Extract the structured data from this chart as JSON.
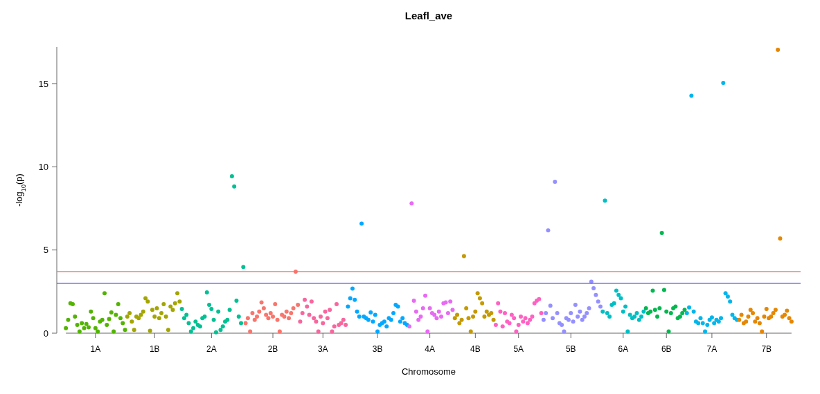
{
  "chart_data": {
    "type": "scatter",
    "title": "Leafl_ave",
    "xlabel": "Chromosome",
    "ylabel": "-log$_{10}$(p)",
    "marker": "circle",
    "ylim": [
      0,
      17.2
    ],
    "yticks": [
      0,
      5,
      10,
      15
    ],
    "ref_lines": [
      {
        "axis": "y",
        "value": 3.7,
        "color": "#f87070"
      },
      {
        "axis": "y",
        "value": 3.0,
        "color": "#5050f0"
      }
    ],
    "categories": [
      null,
      null,
      null,
      null,
      null,
      null,
      null,
      null,
      null,
      null,
      null,
      null,
      null,
      "1A",
      null,
      null,
      null,
      null,
      null,
      null,
      null,
      null,
      null,
      null,
      null,
      null,
      null,
      null,
      null,
      null,
      null,
      null,
      null,
      null,
      null,
      null,
      null,
      null,
      null,
      "1B",
      null,
      null,
      null,
      null,
      null,
      null,
      null,
      null,
      null,
      null,
      null,
      null,
      null,
      null,
      null,
      null,
      null,
      null,
      null,
      null,
      null,
      null,
      null,
      null,
      "2A",
      null,
      null,
      null,
      null,
      null,
      null,
      null,
      null,
      null,
      null,
      null,
      null,
      null,
      null,
      null,
      null,
      null,
      null,
      null,
      null,
      null,
      null,
      null,
      null,
      null,
      null,
      "2B",
      null,
      null,
      null,
      null,
      null,
      null,
      null,
      null,
      null,
      null,
      null,
      null,
      null,
      null,
      null,
      null,
      null,
      null,
      null,
      null,
      null,
      "3A",
      null,
      null,
      null,
      null,
      null,
      null,
      null,
      null,
      null,
      null,
      null,
      null,
      null,
      null,
      null,
      null,
      null,
      null,
      null,
      null,
      null,
      null,
      null,
      "3B",
      null,
      null,
      null,
      null,
      null,
      null,
      null,
      null,
      null,
      null,
      null,
      null,
      null,
      null,
      null,
      null,
      null,
      null,
      null,
      null,
      null,
      null,
      "4A",
      null,
      null,
      null,
      null,
      null,
      null,
      null,
      null,
      null,
      null,
      null,
      null,
      null,
      null,
      null,
      null,
      null,
      null,
      null,
      "4B",
      null,
      null,
      null,
      null,
      null,
      null,
      null,
      null,
      null,
      null,
      null,
      null,
      null,
      null,
      null,
      null,
      null,
      null,
      "5A",
      null,
      null,
      null,
      null,
      null,
      null,
      null,
      null,
      null,
      null,
      null,
      null,
      null,
      null,
      null,
      null,
      null,
      null,
      null,
      null,
      null,
      null,
      "5B",
      null,
      null,
      null,
      null,
      null,
      null,
      null,
      null,
      null,
      null,
      null,
      null,
      null,
      null,
      null,
      null,
      null,
      null,
      null,
      null,
      null,
      null,
      "6A",
      null,
      null,
      null,
      null,
      null,
      null,
      null,
      null,
      null,
      null,
      null,
      null,
      null,
      null,
      null,
      null,
      null,
      null,
      "6B",
      null,
      null,
      null,
      null,
      null,
      null,
      null,
      null,
      null,
      null,
      null,
      null,
      null,
      null,
      null,
      null,
      null,
      null,
      null,
      "7A",
      null,
      null,
      null,
      null,
      null,
      null,
      null,
      null,
      null,
      null,
      null,
      null,
      null,
      null,
      null,
      null,
      null,
      null,
      null,
      null,
      null,
      null,
      null,
      "7B",
      null,
      null,
      null,
      null,
      null,
      null,
      null,
      null,
      null,
      null,
      null
    ],
    "values": [
      0.3,
      0.8,
      1.8,
      1.75,
      1.0,
      0.5,
      0.1,
      0.6,
      0.3,
      0.55,
      0.35,
      1.3,
      0.9,
      0.3,
      0.1,
      0.7,
      0.8,
      2.4,
      0.5,
      0.85,
      1.25,
      0.1,
      1.1,
      1.75,
      0.9,
      0.6,
      0.2,
      1.0,
      1.2,
      0.7,
      0.2,
      1.0,
      0.9,
      1.1,
      1.3,
      2.1,
      1.9,
      0.15,
      1.4,
      1.0,
      1.5,
      0.9,
      1.2,
      1.75,
      1.0,
      0.2,
      1.6,
      1.4,
      1.8,
      2.4,
      1.9,
      1.45,
      0.9,
      1.1,
      0.6,
      0.1,
      0.3,
      0.7,
      0.5,
      0.4,
      0.9,
      1.0,
      2.45,
      1.7,
      1.45,
      0.8,
      0.05,
      1.3,
      0.2,
      0.4,
      0.7,
      0.8,
      1.4,
      9.43,
      8.82,
      1.95,
      1.0,
      0.6,
      3.98,
      0.6,
      0.9,
      0.1,
      1.2,
      0.8,
      1.0,
      1.3,
      1.85,
      1.5,
      1.1,
      0.9,
      1.2,
      1.0,
      1.75,
      0.8,
      0.1,
      1.1,
      1.0,
      1.3,
      0.9,
      1.2,
      1.5,
      3.7,
      1.7,
      0.7,
      1.2,
      2.0,
      1.6,
      1.1,
      1.9,
      0.9,
      0.7,
      0.1,
      1.0,
      0.6,
      1.3,
      0.9,
      1.4,
      0.1,
      0.4,
      1.75,
      0.5,
      0.6,
      0.8,
      0.5,
      1.6,
      2.1,
      2.68,
      2.0,
      1.3,
      1.0,
      6.59,
      1.0,
      0.9,
      0.8,
      1.25,
      0.7,
      1.1,
      0.1,
      0.5,
      0.6,
      0.7,
      0.4,
      0.9,
      0.8,
      1.2,
      1.7,
      1.6,
      0.7,
      0.9,
      0.6,
      0.5,
      0.4,
      7.8,
      1.95,
      1.3,
      0.8,
      1.0,
      1.5,
      2.25,
      0.1,
      1.5,
      1.2,
      1.1,
      0.9,
      1.3,
      1.0,
      1.8,
      1.85,
      1.2,
      1.9,
      1.4,
      0.9,
      1.1,
      0.6,
      0.8,
      4.63,
      1.5,
      0.9,
      0.1,
      1.0,
      1.3,
      2.4,
      2.1,
      1.8,
      1.0,
      1.3,
      1.1,
      1.2,
      0.8,
      0.5,
      1.8,
      1.3,
      0.4,
      1.2,
      0.7,
      0.6,
      1.1,
      0.9,
      0.1,
      0.5,
      1.0,
      0.7,
      0.9,
      0.6,
      0.8,
      1.0,
      1.8,
      1.95,
      2.05,
      1.2,
      0.8,
      1.2,
      6.18,
      1.65,
      0.9,
      9.1,
      1.2,
      0.6,
      0.5,
      0.1,
      0.9,
      0.8,
      1.2,
      0.7,
      1.7,
      1.0,
      1.3,
      0.8,
      1.0,
      1.2,
      1.5,
      3.1,
      2.7,
      2.3,
      1.9,
      1.6,
      1.3,
      7.97,
      1.2,
      1.0,
      1.7,
      1.8,
      2.55,
      2.3,
      2.1,
      1.3,
      1.6,
      0.1,
      1.1,
      0.9,
      1.0,
      1.2,
      0.8,
      1.0,
      1.3,
      1.5,
      1.2,
      1.3,
      2.55,
      1.4,
      1.0,
      1.5,
      6.02,
      2.6,
      1.3,
      0.1,
      1.2,
      1.5,
      1.6,
      0.9,
      1.0,
      1.2,
      1.4,
      1.2,
      1.55,
      14.27,
      1.3,
      0.7,
      0.6,
      0.9,
      0.6,
      0.1,
      0.5,
      0.8,
      0.95,
      0.6,
      0.8,
      0.7,
      0.9,
      15.04,
      2.4,
      2.2,
      1.9,
      1.1,
      0.9,
      0.8,
      0.8,
      1.1,
      0.6,
      0.7,
      1.0,
      1.4,
      1.2,
      0.7,
      0.9,
      0.6,
      0.1,
      1.0,
      1.45,
      0.9,
      1.0,
      1.2,
      1.4,
      17.03,
      5.69,
      1.0,
      1.1,
      1.35,
      0.9,
      0.7
    ],
    "colors": [
      "#53b400",
      "#53b400",
      "#53b400",
      "#53b400",
      "#53b400",
      "#53b400",
      "#53b400",
      "#53b400",
      "#53b400",
      "#53b400",
      "#53b400",
      "#53b400",
      "#53b400",
      "#53b400",
      "#53b400",
      "#53b400",
      "#53b400",
      "#53b400",
      "#53b400",
      "#53b400",
      "#53b400",
      "#53b400",
      "#53b400",
      "#53b400",
      "#53b400",
      "#53b400",
      "#53b400",
      "#a3a500",
      "#a3a500",
      "#a3a500",
      "#a3a500",
      "#a3a500",
      "#a3a500",
      "#a3a500",
      "#a3a500",
      "#a3a500",
      "#a3a500",
      "#a3a500",
      "#a3a500",
      "#a3a500",
      "#a3a500",
      "#a3a500",
      "#a3a500",
      "#a3a500",
      "#a3a500",
      "#a3a500",
      "#a3a500",
      "#a3a500",
      "#a3a500",
      "#a3a500",
      "#a3a500",
      "#00c094",
      "#00c094",
      "#00c094",
      "#00c094",
      "#00c094",
      "#00c094",
      "#00c094",
      "#00c094",
      "#00c094",
      "#00c094",
      "#00c094",
      "#00c094",
      "#00c094",
      "#00c094",
      "#00c094",
      "#00c094",
      "#00c094",
      "#00c094",
      "#00c094",
      "#00c094",
      "#00c094",
      "#00c094",
      "#00c094",
      "#00c094",
      "#00c094",
      "#00c094",
      "#00c094",
      "#00c094",
      "#f8766d",
      "#f8766d",
      "#f8766d",
      "#f8766d",
      "#f8766d",
      "#f8766d",
      "#f8766d",
      "#f8766d",
      "#f8766d",
      "#f8766d",
      "#f8766d",
      "#f8766d",
      "#f8766d",
      "#f8766d",
      "#f8766d",
      "#f8766d",
      "#f8766d",
      "#f8766d",
      "#f8766d",
      "#f8766d",
      "#f8766d",
      "#f8766d",
      "#f8766d",
      "#f8766d",
      "#f8669e",
      "#f8669e",
      "#f8669e",
      "#f8669e",
      "#f8669e",
      "#f8669e",
      "#f8669e",
      "#f8669e",
      "#f8669e",
      "#f8669e",
      "#f8669e",
      "#f8669e",
      "#f8669e",
      "#f8669e",
      "#f8669e",
      "#f8669e",
      "#f8669e",
      "#f8669e",
      "#f8669e",
      "#f8669e",
      "#f8669e",
      "#00a9ff",
      "#00a9ff",
      "#00a9ff",
      "#00a9ff",
      "#00a9ff",
      "#00a9ff",
      "#00a9ff",
      "#00a9ff",
      "#00a9ff",
      "#00a9ff",
      "#00a9ff",
      "#00a9ff",
      "#00a9ff",
      "#00a9ff",
      "#00a9ff",
      "#00a9ff",
      "#00a9ff",
      "#00a9ff",
      "#00a9ff",
      "#00a9ff",
      "#00a9ff",
      "#00a9ff",
      "#00a9ff",
      "#00a9ff",
      "#00a9ff",
      "#00a9ff",
      "#00a9ff",
      "#e76bf3",
      "#e76bf3",
      "#e76bf3",
      "#e76bf3",
      "#e76bf3",
      "#e76bf3",
      "#e76bf3",
      "#e76bf3",
      "#e76bf3",
      "#e76bf3",
      "#e76bf3",
      "#e76bf3",
      "#e76bf3",
      "#e76bf3",
      "#e76bf3",
      "#e76bf3",
      "#e76bf3",
      "#e76bf3",
      "#e76bf3",
      "#e76bf3",
      "#c49a00",
      "#c49a00",
      "#c49a00",
      "#c49a00",
      "#c49a00",
      "#c49a00",
      "#c49a00",
      "#c49a00",
      "#c49a00",
      "#c49a00",
      "#c49a00",
      "#c49a00",
      "#c49a00",
      "#c49a00",
      "#c49a00",
      "#c49a00",
      "#c49a00",
      "#c49a00",
      "#ff61c3",
      "#ff61c3",
      "#ff61c3",
      "#ff61c3",
      "#ff61c3",
      "#ff61c3",
      "#ff61c3",
      "#ff61c3",
      "#ff61c3",
      "#ff61c3",
      "#ff61c3",
      "#ff61c3",
      "#ff61c3",
      "#ff61c3",
      "#ff61c3",
      "#ff61c3",
      "#ff61c3",
      "#ff61c3",
      "#ff61c3",
      "#ff61c3",
      "#ff61c3",
      "#9590ff",
      "#9590ff",
      "#9590ff",
      "#9590ff",
      "#9590ff",
      "#9590ff",
      "#9590ff",
      "#9590ff",
      "#9590ff",
      "#9590ff",
      "#9590ff",
      "#9590ff",
      "#9590ff",
      "#9590ff",
      "#9590ff",
      "#9590ff",
      "#9590ff",
      "#9590ff",
      "#9590ff",
      "#9590ff",
      "#9590ff",
      "#9590ff",
      "#9590ff",
      "#9590ff",
      "#9590ff",
      "#9590ff",
      "#00bfc4",
      "#00bfc4",
      "#00bfc4",
      "#00bfc4",
      "#00bfc4",
      "#00bfc4",
      "#00bfc4",
      "#00bfc4",
      "#00bfc4",
      "#00bfc4",
      "#00bfc4",
      "#00bfc4",
      "#00bfc4",
      "#00bfc4",
      "#00bfc4",
      "#00bfc4",
      "#00bfc4",
      "#00bfc4",
      "#00bfc4",
      "#00b84f",
      "#00b84f",
      "#00b84f",
      "#00b84f",
      "#00b84f",
      "#00b84f",
      "#00b84f",
      "#00b84f",
      "#00b84f",
      "#00b84f",
      "#00b84f",
      "#00b84f",
      "#00b84f",
      "#00b84f",
      "#00b84f",
      "#00b84f",
      "#00b84f",
      "#00b84f",
      "#00b6eb",
      "#00b6eb",
      "#00b6eb",
      "#00b6eb",
      "#00b6eb",
      "#00b6eb",
      "#00b6eb",
      "#00b6eb",
      "#00b6eb",
      "#00b6eb",
      "#00b6eb",
      "#00b6eb",
      "#00b6eb",
      "#00b6eb",
      "#00b6eb",
      "#00b6eb",
      "#00b6eb",
      "#00b6eb",
      "#00b6eb",
      "#00b6eb",
      "#00b6eb",
      "#00b6eb",
      "#00b6eb",
      "#e58700",
      "#e58700",
      "#e58700",
      "#e58700",
      "#e58700",
      "#e58700",
      "#e58700",
      "#e58700",
      "#e58700",
      "#e58700",
      "#e58700",
      "#e58700",
      "#e58700",
      "#e58700",
      "#e58700",
      "#e58700",
      "#e58700",
      "#e58700",
      "#e58700",
      "#e58700",
      "#e58700",
      "#e58700",
      "#e58700",
      "#e58700"
    ]
  }
}
